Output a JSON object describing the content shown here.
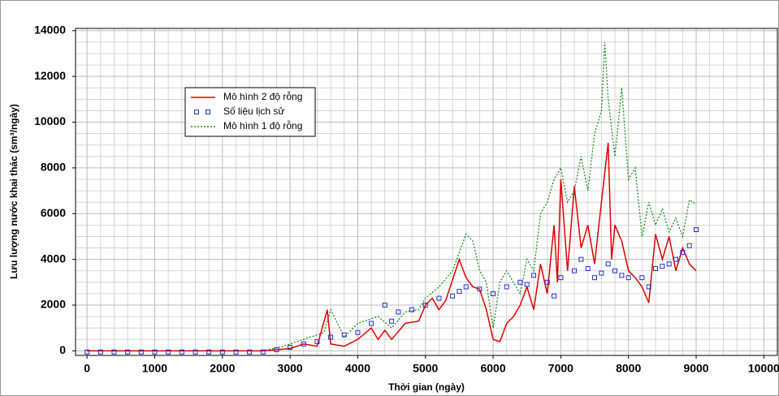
{
  "chart_data": {
    "type": "line",
    "xlabel": "Thời gian (ngày)",
    "ylabel": "Lưu lượng nước khai thác (sm³/ngày)",
    "xlim": [
      -170,
      10200
    ],
    "xticks": [
      0,
      1000,
      2000,
      3000,
      4000,
      5000,
      6000,
      7000,
      8000,
      9000,
      10000
    ],
    "ylim": [
      -200,
      14100
    ],
    "yticks": [
      0,
      2000,
      4000,
      6000,
      8000,
      10000,
      12000,
      14000
    ],
    "grid": true,
    "legend": "upper left",
    "series": [
      {
        "name": "Mô hình 2 độ rỗng",
        "color": "#e00000",
        "style": "solid",
        "x": [
          0,
          200,
          2600,
          2800,
          3000,
          3200,
          3400,
          3550,
          3600,
          3800,
          4000,
          4200,
          4300,
          4400,
          4500,
          4700,
          4900,
          5000,
          5100,
          5200,
          5300,
          5500,
          5600,
          5700,
          5800,
          5900,
          6000,
          6100,
          6200,
          6300,
          6400,
          6500,
          6600,
          6700,
          6800,
          6900,
          6950,
          7000,
          7100,
          7200,
          7300,
          7400,
          7500,
          7600,
          7700,
          7750,
          7800,
          7900,
          8000,
          8100,
          8200,
          8300,
          8400,
          8500,
          8600,
          8700,
          8800,
          8900,
          9000
        ],
        "y": [
          0,
          0,
          0,
          50,
          100,
          300,
          200,
          1800,
          300,
          200,
          500,
          1000,
          500,
          900,
          500,
          1200,
          1300,
          2000,
          2300,
          1800,
          2200,
          4000,
          3200,
          2800,
          2700,
          1800,
          500,
          400,
          1200,
          1500,
          2000,
          2800,
          1800,
          3800,
          2500,
          5500,
          3000,
          7500,
          3500,
          7200,
          4500,
          5500,
          3800,
          6500,
          9100,
          4000,
          5500,
          4800,
          3500,
          3200,
          2800,
          2100,
          5100,
          4000,
          5000,
          3500,
          4500,
          3800,
          3500
        ]
      },
      {
        "name": "Số liệu lịch sử",
        "color": "#1f2fd0",
        "style": "markers",
        "x": [
          0,
          200,
          400,
          600,
          800,
          1000,
          1200,
          1400,
          1600,
          1800,
          2000,
          2200,
          2400,
          2600,
          2800,
          3000,
          3200,
          3400,
          3600,
          3800,
          4000,
          4200,
          4400,
          4500,
          4600,
          4800,
          5000,
          5200,
          5400,
          5500,
          5600,
          5800,
          6000,
          6200,
          6400,
          6500,
          6600,
          6800,
          6900,
          7000,
          7200,
          7300,
          7400,
          7500,
          7600,
          7700,
          7800,
          7900,
          8000,
          8200,
          8300,
          8400,
          8500,
          8600,
          8700,
          8800,
          8900,
          9000
        ],
        "y": [
          -50,
          -50,
          -50,
          -50,
          -50,
          -50,
          -50,
          -50,
          -50,
          -50,
          -50,
          -50,
          -50,
          -50,
          50,
          150,
          300,
          400,
          600,
          700,
          800,
          1200,
          2000,
          1300,
          1700,
          1800,
          2000,
          2300,
          2400,
          2600,
          2800,
          2700,
          2500,
          2800,
          3000,
          2900,
          3300,
          3000,
          2400,
          3200,
          3500,
          4000,
          3600,
          3200,
          3400,
          3800,
          3500,
          3300,
          3200,
          3200,
          2800,
          3600,
          3700,
          3800,
          4000,
          4300,
          4600,
          5300
        ]
      },
      {
        "name": "Mô hình 1 độ rỗng",
        "color": "#1a8a1a",
        "style": "dotted",
        "x": [
          0,
          200,
          2600,
          2900,
          3200,
          3500,
          3600,
          3800,
          4000,
          4300,
          4500,
          4700,
          4900,
          5000,
          5200,
          5400,
          5600,
          5700,
          5800,
          5900,
          6000,
          6100,
          6200,
          6400,
          6500,
          6600,
          6700,
          6800,
          6900,
          7000,
          7100,
          7200,
          7300,
          7400,
          7500,
          7600,
          7650,
          7700,
          7800,
          7900,
          8000,
          8100,
          8200,
          8300,
          8400,
          8500,
          8600,
          8700,
          8800,
          8900,
          9000
        ],
        "y": [
          0,
          0,
          0,
          200,
          500,
          800,
          1800,
          600,
          1200,
          1500,
          1000,
          1700,
          1800,
          2300,
          2800,
          3500,
          5100,
          4800,
          3500,
          3000,
          1000,
          3000,
          3500,
          2500,
          4000,
          3500,
          6000,
          6500,
          7500,
          8000,
          6500,
          7000,
          8500,
          7000,
          9500,
          10500,
          13500,
          11000,
          8500,
          11500,
          7500,
          8000,
          5000,
          6500,
          5500,
          6200,
          5200,
          5800,
          5000,
          6600,
          6400
        ]
      }
    ]
  }
}
